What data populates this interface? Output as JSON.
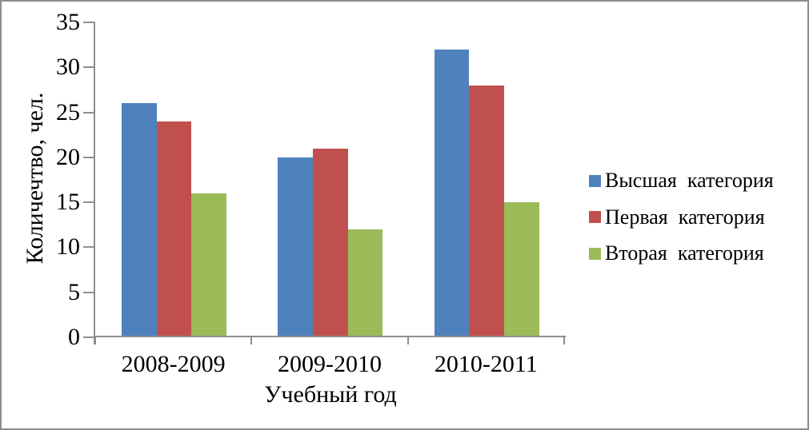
{
  "chart_data": {
    "type": "bar",
    "title": "",
    "categories": [
      "2008-2009",
      "2009-2010",
      "2010-2011"
    ],
    "series": [
      {
        "name": "Высшая  категория",
        "color": "#4F81BD",
        "values": [
          26,
          20,
          32
        ]
      },
      {
        "name": "Первая  категория",
        "color": "#C0504D",
        "values": [
          24,
          21,
          28
        ]
      },
      {
        "name": "Вторая  категория",
        "color": "#9BBB59",
        "values": [
          16,
          12,
          15
        ]
      }
    ],
    "xlabel": "Учебный год",
    "ylabel": "Количечтво, чел.",
    "ylim": [
      0,
      35
    ],
    "yticks": [
      0,
      5,
      10,
      15,
      20,
      25,
      30,
      35
    ],
    "grid": false,
    "legend_position": "right",
    "axis_color": "#8e8e8e",
    "frame_color": "#8c8c8c"
  }
}
